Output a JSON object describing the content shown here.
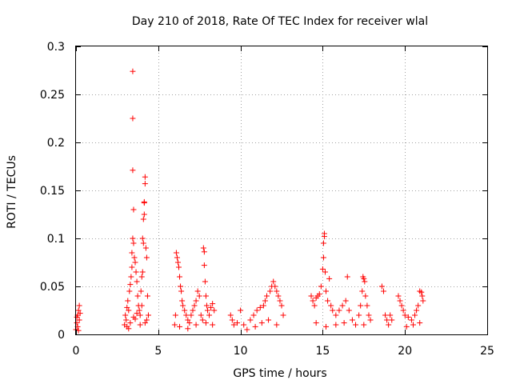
{
  "chart_data": {
    "type": "scatter",
    "title": "Day 210 of 2018, Rate Of TEC Index for receiver wlal",
    "xlabel": "GPS time / hours",
    "ylabel": "ROTI / TECUs",
    "xlim": [
      0,
      25
    ],
    "ylim": [
      0,
      0.3
    ],
    "xticks": [
      0,
      5,
      10,
      15,
      20,
      25
    ],
    "xtick_labels": [
      "0",
      "5",
      "10",
      "15",
      "20",
      "25"
    ],
    "yticks": [
      0,
      0.05,
      0.1,
      0.15,
      0.2,
      0.25,
      0.3
    ],
    "ytick_labels": [
      "0",
      "0.05",
      "0.1",
      "0.15",
      "0.2",
      "0.25",
      "0.3"
    ],
    "grid": true,
    "marker": "+",
    "color": "#ff0000",
    "series": [
      {
        "name": "ROTI",
        "points": [
          [
            0.0,
            0.005
          ],
          [
            0.05,
            0.012
          ],
          [
            0.1,
            0.02
          ],
          [
            0.1,
            0.008
          ],
          [
            0.15,
            0.025
          ],
          [
            0.2,
            0.015
          ],
          [
            0.2,
            0.03
          ],
          [
            0.25,
            0.022
          ],
          [
            0.05,
            0.018
          ],
          [
            0.15,
            0.004
          ],
          [
            2.95,
            0.01
          ],
          [
            3.0,
            0.02
          ],
          [
            3.05,
            0.015
          ],
          [
            3.1,
            0.028
          ],
          [
            3.15,
            0.035
          ],
          [
            3.2,
            0.025
          ],
          [
            3.25,
            0.045
          ],
          [
            3.3,
            0.052
          ],
          [
            3.35,
            0.06
          ],
          [
            3.4,
            0.07
          ],
          [
            3.4,
            0.085
          ],
          [
            3.45,
            0.1
          ],
          [
            3.45,
            0.274
          ],
          [
            3.45,
            0.225
          ],
          [
            3.45,
            0.171
          ],
          [
            3.5,
            0.13
          ],
          [
            3.5,
            0.095
          ],
          [
            3.55,
            0.08
          ],
          [
            3.6,
            0.075
          ],
          [
            3.65,
            0.065
          ],
          [
            3.7,
            0.055
          ],
          [
            3.75,
            0.04
          ],
          [
            3.8,
            0.03
          ],
          [
            3.85,
            0.025
          ],
          [
            3.9,
            0.02
          ],
          [
            3.95,
            0.045
          ],
          [
            4.0,
            0.06
          ],
          [
            4.05,
            0.065
          ],
          [
            4.05,
            0.1
          ],
          [
            4.1,
            0.095
          ],
          [
            4.1,
            0.12
          ],
          [
            4.15,
            0.125
          ],
          [
            4.15,
            0.137
          ],
          [
            4.15,
            0.138
          ],
          [
            4.2,
            0.157
          ],
          [
            4.2,
            0.164
          ],
          [
            4.25,
            0.09
          ],
          [
            4.3,
            0.08
          ],
          [
            4.35,
            0.04
          ],
          [
            4.4,
            0.02
          ],
          [
            3.1,
            0.008
          ],
          [
            3.3,
            0.012
          ],
          [
            3.6,
            0.016
          ],
          [
            3.9,
            0.01
          ],
          [
            4.2,
            0.012
          ],
          [
            3.2,
            0.006
          ],
          [
            3.5,
            0.018
          ],
          [
            3.7,
            0.022
          ],
          [
            4.0,
            0.03
          ],
          [
            4.3,
            0.015
          ],
          [
            6.0,
            0.01
          ],
          [
            6.05,
            0.02
          ],
          [
            6.1,
            0.085
          ],
          [
            6.15,
            0.08
          ],
          [
            6.2,
            0.075
          ],
          [
            6.25,
            0.07
          ],
          [
            6.3,
            0.06
          ],
          [
            6.35,
            0.05
          ],
          [
            6.4,
            0.045
          ],
          [
            6.45,
            0.035
          ],
          [
            6.5,
            0.03
          ],
          [
            6.6,
            0.025
          ],
          [
            6.7,
            0.02
          ],
          [
            6.8,
            0.015
          ],
          [
            6.9,
            0.012
          ],
          [
            7.0,
            0.02
          ],
          [
            7.1,
            0.025
          ],
          [
            7.2,
            0.03
          ],
          [
            7.3,
            0.035
          ],
          [
            7.4,
            0.045
          ],
          [
            7.5,
            0.04
          ],
          [
            7.6,
            0.02
          ],
          [
            7.7,
            0.015
          ],
          [
            7.75,
            0.09
          ],
          [
            7.8,
            0.086
          ],
          [
            7.8,
            0.072
          ],
          [
            7.85,
            0.055
          ],
          [
            7.9,
            0.04
          ],
          [
            7.95,
            0.03
          ],
          [
            8.0,
            0.025
          ],
          [
            8.1,
            0.02
          ],
          [
            8.2,
            0.028
          ],
          [
            8.3,
            0.032
          ],
          [
            8.4,
            0.025
          ],
          [
            6.3,
            0.008
          ],
          [
            6.8,
            0.006
          ],
          [
            7.3,
            0.01
          ],
          [
            7.9,
            0.012
          ],
          [
            8.3,
            0.01
          ],
          [
            9.4,
            0.02
          ],
          [
            9.5,
            0.015
          ],
          [
            9.6,
            0.01
          ],
          [
            9.8,
            0.012
          ],
          [
            10.0,
            0.025
          ],
          [
            10.2,
            0.01
          ],
          [
            10.4,
            0.005
          ],
          [
            10.6,
            0.015
          ],
          [
            10.8,
            0.02
          ],
          [
            11.0,
            0.025
          ],
          [
            11.2,
            0.028
          ],
          [
            11.4,
            0.03
          ],
          [
            11.5,
            0.035
          ],
          [
            11.6,
            0.04
          ],
          [
            11.8,
            0.045
          ],
          [
            11.9,
            0.05
          ],
          [
            12.0,
            0.055
          ],
          [
            12.1,
            0.05
          ],
          [
            12.2,
            0.045
          ],
          [
            12.3,
            0.04
          ],
          [
            12.4,
            0.035
          ],
          [
            12.5,
            0.03
          ],
          [
            12.6,
            0.02
          ],
          [
            10.9,
            0.008
          ],
          [
            11.3,
            0.012
          ],
          [
            11.7,
            0.015
          ],
          [
            12.2,
            0.01
          ],
          [
            14.3,
            0.04
          ],
          [
            14.4,
            0.035
          ],
          [
            14.5,
            0.03
          ],
          [
            14.6,
            0.038
          ],
          [
            14.7,
            0.04
          ],
          [
            14.8,
            0.042
          ],
          [
            14.9,
            0.05
          ],
          [
            15.0,
            0.068
          ],
          [
            15.05,
            0.08
          ],
          [
            15.05,
            0.095
          ],
          [
            15.1,
            0.105
          ],
          [
            15.1,
            0.102
          ],
          [
            15.15,
            0.065
          ],
          [
            15.2,
            0.045
          ],
          [
            15.3,
            0.035
          ],
          [
            15.4,
            0.058
          ],
          [
            15.5,
            0.03
          ],
          [
            15.6,
            0.025
          ],
          [
            15.8,
            0.02
          ],
          [
            16.0,
            0.025
          ],
          [
            16.2,
            0.03
          ],
          [
            16.4,
            0.035
          ],
          [
            16.5,
            0.06
          ],
          [
            16.6,
            0.025
          ],
          [
            16.8,
            0.015
          ],
          [
            17.0,
            0.01
          ],
          [
            14.6,
            0.012
          ],
          [
            15.2,
            0.008
          ],
          [
            15.8,
            0.01
          ],
          [
            16.3,
            0.012
          ],
          [
            17.2,
            0.02
          ],
          [
            17.3,
            0.03
          ],
          [
            17.4,
            0.045
          ],
          [
            17.45,
            0.06
          ],
          [
            17.5,
            0.058
          ],
          [
            17.55,
            0.055
          ],
          [
            17.6,
            0.04
          ],
          [
            17.7,
            0.03
          ],
          [
            17.8,
            0.02
          ],
          [
            17.9,
            0.015
          ],
          [
            17.5,
            0.01
          ],
          [
            18.6,
            0.05
          ],
          [
            18.7,
            0.045
          ],
          [
            18.8,
            0.02
          ],
          [
            18.9,
            0.015
          ],
          [
            19.0,
            0.01
          ],
          [
            19.1,
            0.02
          ],
          [
            19.2,
            0.015
          ],
          [
            19.6,
            0.04
          ],
          [
            19.7,
            0.035
          ],
          [
            19.8,
            0.03
          ],
          [
            19.9,
            0.025
          ],
          [
            20.0,
            0.02
          ],
          [
            20.2,
            0.018
          ],
          [
            20.4,
            0.015
          ],
          [
            20.6,
            0.02
          ],
          [
            20.7,
            0.025
          ],
          [
            20.8,
            0.03
          ],
          [
            20.9,
            0.045
          ],
          [
            21.0,
            0.044
          ],
          [
            21.05,
            0.04
          ],
          [
            21.1,
            0.035
          ],
          [
            20.1,
            0.008
          ],
          [
            20.5,
            0.01
          ],
          [
            20.9,
            0.012
          ]
        ]
      }
    ]
  }
}
